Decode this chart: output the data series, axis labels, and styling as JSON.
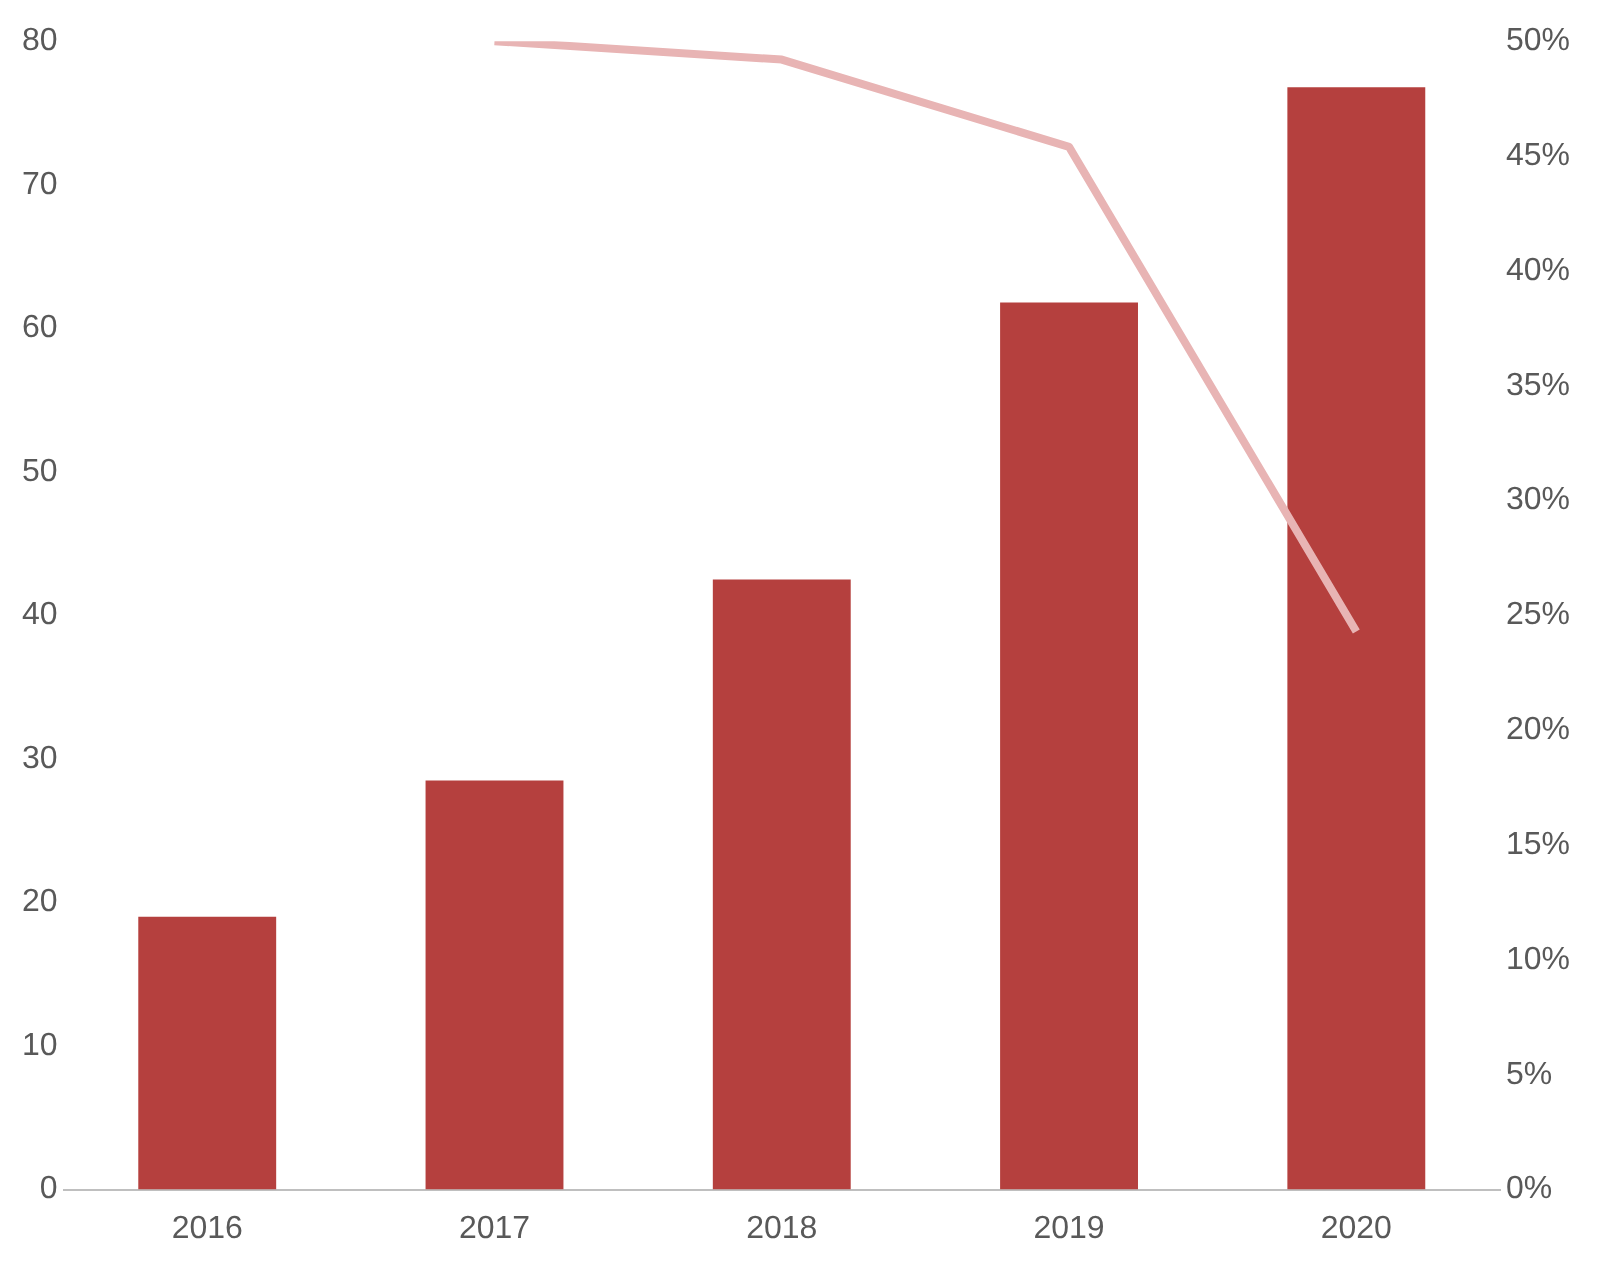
{
  "chart_data": {
    "type": "bar",
    "categories": [
      "2016",
      "2017",
      "2018",
      "2019",
      "2020"
    ],
    "series": [
      {
        "color": "#b5403e",
        "values": [
          19,
          28.5,
          42.5,
          61.8,
          76.8
        ]
      },
      {
        "type": "line",
        "axis": "y2",
        "color": "#e8b4b4",
        "marker": "none",
        "values": [
          null,
          50,
          49.2,
          45.4,
          24.3
        ]
      }
    ],
    "ylim": [
      0,
      80
    ],
    "yticks": [
      0,
      10,
      20,
      30,
      40,
      50,
      60,
      70,
      80
    ],
    "y2lim": [
      0,
      50
    ],
    "y2ticks": [
      {
        "value": 0,
        "label": "0%"
      },
      {
        "value": 5,
        "label": "5%"
      },
      {
        "value": 10,
        "label": "10%"
      },
      {
        "value": 15,
        "label": "15%"
      },
      {
        "value": 20,
        "label": "20%"
      },
      {
        "value": 25,
        "label": "25%"
      },
      {
        "value": 30,
        "label": "30%"
      },
      {
        "value": 35,
        "label": "35%"
      },
      {
        "value": 40,
        "label": "40%"
      },
      {
        "value": 45,
        "label": "45%"
      },
      {
        "value": 50,
        "label": "50%"
      }
    ],
    "grid": false,
    "legend": false
  }
}
